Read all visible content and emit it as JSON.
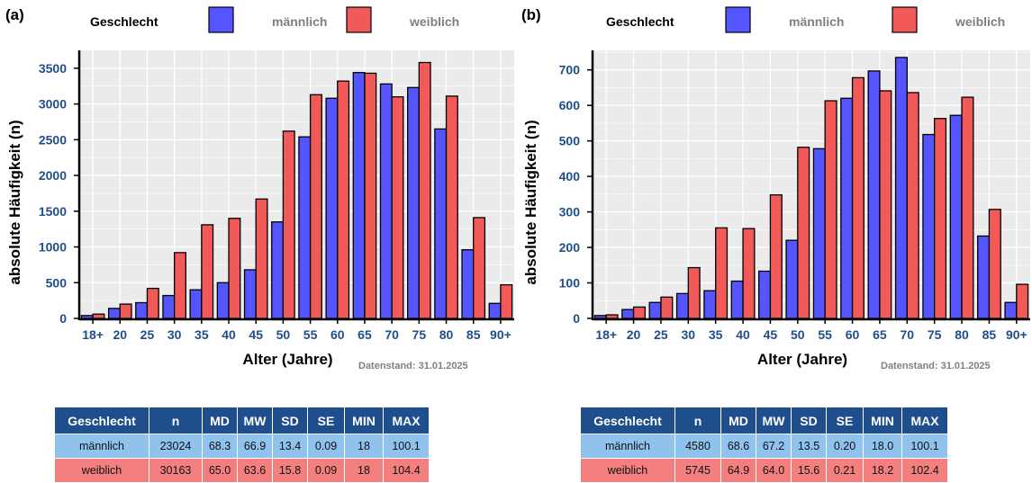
{
  "chart_data": [
    {
      "panel_label": "(a)",
      "type": "bar",
      "legend": {
        "title": "Geschlecht",
        "entries": [
          "männlich",
          "weiblich"
        ],
        "position": "top"
      },
      "xlabel": "Alter (Jahre)",
      "ylabel": "absolute Häufigkeit (n)",
      "annotation": "Datenstand: 31.01.2025",
      "categories": [
        "18+",
        "20",
        "25",
        "30",
        "35",
        "40",
        "45",
        "50",
        "55",
        "60",
        "65",
        "70",
        "75",
        "80",
        "85",
        "90+"
      ],
      "series": [
        {
          "name": "männlich",
          "values": [
            40,
            140,
            220,
            320,
            400,
            500,
            680,
            1350,
            2540,
            3080,
            3440,
            3280,
            3230,
            2650,
            960,
            210
          ]
        },
        {
          "name": "weiblich",
          "values": [
            60,
            200,
            420,
            920,
            1310,
            1400,
            1670,
            2620,
            3130,
            3320,
            3430,
            3100,
            3580,
            3110,
            1410,
            470
          ]
        }
      ],
      "yticks": [
        0,
        500,
        1000,
        1500,
        2000,
        2500,
        3000,
        3500
      ],
      "ylim": [
        0,
        3750
      ],
      "grid": true,
      "colors": {
        "männlich": "#5555ff",
        "weiblich": "#f25a5a",
        "axis_text": "#1f4e8c",
        "panel_bg": "#ebebeb"
      }
    },
    {
      "panel_label": "(b)",
      "type": "bar",
      "legend": {
        "title": "Geschlecht",
        "entries": [
          "männlich",
          "weiblich"
        ],
        "position": "top"
      },
      "xlabel": "Alter (Jahre)",
      "ylabel": "absolute Häufigkeit (n)",
      "annotation": "Datenstand: 31.01.2025",
      "categories": [
        "18+",
        "20",
        "25",
        "30",
        "35",
        "40",
        "45",
        "50",
        "55",
        "60",
        "65",
        "70",
        "75",
        "80",
        "85",
        "90+"
      ],
      "series": [
        {
          "name": "männlich",
          "values": [
            8,
            25,
            45,
            70,
            78,
            105,
            133,
            220,
            478,
            620,
            697,
            735,
            518,
            572,
            232,
            45
          ]
        },
        {
          "name": "weiblich",
          "values": [
            10,
            32,
            60,
            143,
            255,
            253,
            348,
            482,
            613,
            678,
            641,
            636,
            563,
            623,
            307,
            96
          ]
        }
      ],
      "yticks": [
        0,
        100,
        200,
        300,
        400,
        500,
        600,
        700
      ],
      "ylim": [
        0,
        755
      ],
      "grid": true,
      "colors": {
        "männlich": "#5555ff",
        "weiblich": "#f25a5a",
        "axis_text": "#1f4e8c",
        "panel_bg": "#ebebeb"
      }
    }
  ],
  "tables": [
    {
      "headers": [
        "Geschlecht",
        "n",
        "MD",
        "MW",
        "SD",
        "SE",
        "MIN",
        "MAX"
      ],
      "rows": [
        [
          "männlich",
          "23024",
          "68.3",
          "66.9",
          "13.4",
          "0.09",
          "18",
          "100.1"
        ],
        [
          "weiblich",
          "30163",
          "65.0",
          "63.6",
          "15.8",
          "0.09",
          "18",
          "104.4"
        ]
      ]
    },
    {
      "headers": [
        "Geschlecht",
        "n",
        "MD",
        "MW",
        "SD",
        "SE",
        "MIN",
        "MAX"
      ],
      "rows": [
        [
          "männlich",
          "4580",
          "68.6",
          "67.2",
          "13.5",
          "0.20",
          "18.0",
          "100.1"
        ],
        [
          "weiblich",
          "5745",
          "64.9",
          "64.0",
          "15.6",
          "0.21",
          "18.2",
          "102.4"
        ]
      ]
    }
  ]
}
